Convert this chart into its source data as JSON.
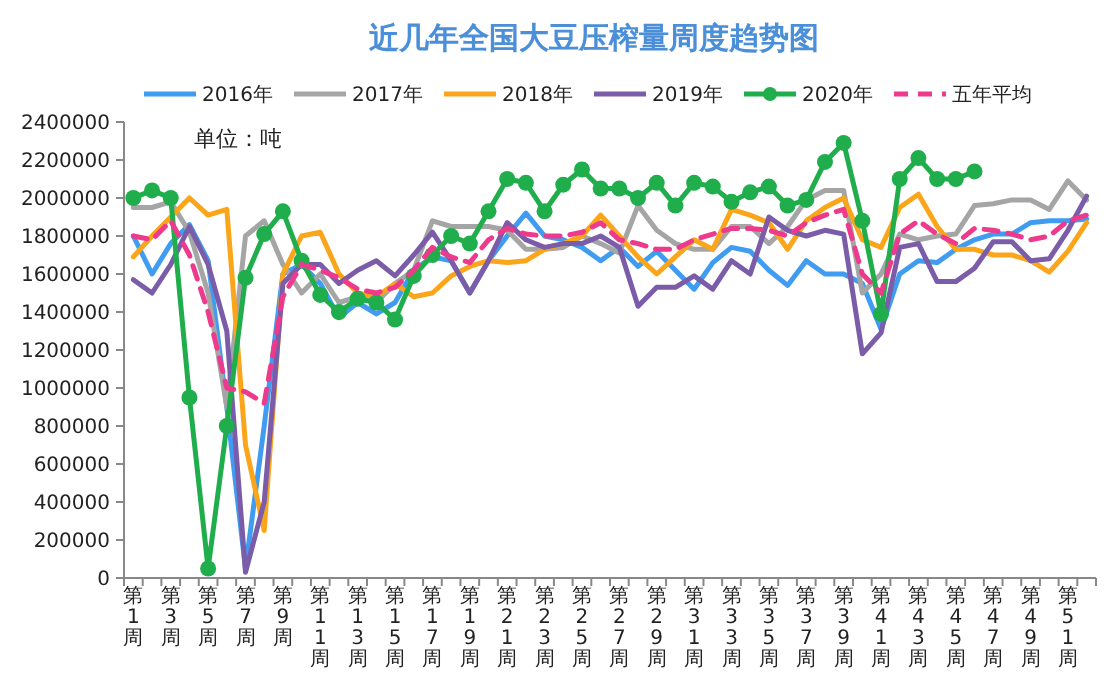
{
  "chart_data": {
    "type": "line",
    "title": "近几年全国大豆压榨量周度趋势图",
    "annotations": [
      "单位：吨"
    ],
    "categories": [
      "第1周",
      null,
      "第3周",
      null,
      "第5周",
      null,
      "第7周",
      null,
      "第9周",
      null,
      "第11周",
      null,
      "第13周",
      null,
      "第15周",
      null,
      "第17周",
      null,
      "第19周",
      null,
      "第21周",
      null,
      "第23周",
      null,
      "第25周",
      null,
      "第27周",
      null,
      "第29周",
      null,
      "第31周",
      null,
      "第33周",
      null,
      "第35周",
      null,
      "第37周",
      null,
      "第39周",
      null,
      "第41周",
      null,
      "第43周",
      null,
      "第45周",
      null,
      "第47周",
      null,
      "第49周",
      null,
      "第51周",
      null
    ],
    "ylim": [
      0,
      2400000
    ],
    "yticks": [
      0,
      200000,
      400000,
      600000,
      800000,
      1000000,
      1200000,
      1400000,
      1600000,
      1800000,
      2000000,
      2200000,
      2400000
    ],
    "grid": false,
    "legend": "top",
    "series": [
      {
        "name": "2016年",
        "color": "#3f9cf0",
        "marker": "none",
        "line_style": "solid",
        "values": [
          1800000,
          1600000,
          1760000,
          1860000,
          1670000,
          900000,
          50000,
          800000,
          1600000,
          1650000,
          1550000,
          1370000,
          1450000,
          1390000,
          1450000,
          1620000,
          1690000,
          1670000,
          1500000,
          1670000,
          1800000,
          1920000,
          1800000,
          1780000,
          1740000,
          1670000,
          1740000,
          1640000,
          1720000,
          1620000,
          1520000,
          1660000,
          1740000,
          1720000,
          1620000,
          1540000,
          1670000,
          1600000,
          1600000,
          1550000,
          1310000,
          1600000,
          1670000,
          1660000,
          1730000,
          1780000,
          1810000,
          1810000,
          1870000,
          1880000,
          1880000,
          1890000
        ]
      },
      {
        "name": "2017年",
        "color": "#a5a5a5",
        "marker": "none",
        "line_style": "solid",
        "values": [
          1950000,
          1950000,
          1980000,
          1820000,
          1500000,
          900000,
          1800000,
          1880000,
          1650000,
          1500000,
          1600000,
          1450000,
          1480000,
          1450000,
          1550000,
          1620000,
          1880000,
          1850000,
          1850000,
          1850000,
          1830000,
          1730000,
          1730000,
          1740000,
          1800000,
          1760000,
          1710000,
          1960000,
          1830000,
          1760000,
          1730000,
          1730000,
          1850000,
          1850000,
          1760000,
          1850000,
          1990000,
          2040000,
          2040000,
          1500000,
          1600000,
          1810000,
          1780000,
          1800000,
          1810000,
          1960000,
          1970000,
          1990000,
          1990000,
          1940000,
          2090000,
          1990000
        ]
      },
      {
        "name": "2018年",
        "color": "#fba51a",
        "marker": "none",
        "line_style": "solid",
        "values": [
          1690000,
          1800000,
          1900000,
          2000000,
          1910000,
          1940000,
          700000,
          250000,
          1600000,
          1800000,
          1820000,
          1600000,
          1500000,
          1480000,
          1550000,
          1480000,
          1500000,
          1590000,
          1640000,
          1670000,
          1660000,
          1670000,
          1730000,
          1760000,
          1800000,
          1910000,
          1800000,
          1690000,
          1600000,
          1690000,
          1780000,
          1730000,
          1940000,
          1910000,
          1870000,
          1730000,
          1880000,
          1950000,
          2000000,
          1780000,
          1740000,
          1950000,
          2020000,
          1850000,
          1730000,
          1730000,
          1700000,
          1700000,
          1670000,
          1610000,
          1720000,
          1870000
        ]
      },
      {
        "name": "2019年",
        "color": "#7b5ca8",
        "marker": "none",
        "line_style": "solid",
        "values": [
          1570000,
          1500000,
          1650000,
          1850000,
          1650000,
          1300000,
          30000,
          400000,
          1550000,
          1650000,
          1650000,
          1550000,
          1620000,
          1670000,
          1590000,
          1700000,
          1820000,
          1670000,
          1500000,
          1670000,
          1870000,
          1780000,
          1740000,
          1760000,
          1760000,
          1800000,
          1740000,
          1430000,
          1530000,
          1530000,
          1590000,
          1520000,
          1670000,
          1600000,
          1900000,
          1830000,
          1800000,
          1830000,
          1810000,
          1180000,
          1290000,
          1740000,
          1760000,
          1560000,
          1560000,
          1630000,
          1770000,
          1770000,
          1670000,
          1680000,
          1830000,
          2010000
        ]
      },
      {
        "name": "2020年",
        "color": "#1fae4b",
        "marker": "circle",
        "line_style": "solid",
        "values": [
          2000000,
          2040000,
          2000000,
          950000,
          50000,
          800000,
          1580000,
          1810000,
          1930000,
          1670000,
          1490000,
          1400000,
          1470000,
          1450000,
          1360000,
          1590000,
          1700000,
          1800000,
          1760000,
          1930000,
          2100000,
          2080000,
          1930000,
          2070000,
          2150000,
          2050000,
          2050000,
          2000000,
          2080000,
          1960000,
          2080000,
          2060000,
          1980000,
          2030000,
          2060000,
          1960000,
          1990000,
          2190000,
          2290000,
          1880000,
          1390000,
          2100000,
          2210000,
          2100000,
          2100000,
          2140000,
          null,
          null,
          null,
          null,
          null,
          null
        ]
      },
      {
        "name": "五年平均",
        "color": "#ee3a8c",
        "marker": "none",
        "line_style": "dashed",
        "values": [
          1800000,
          1780000,
          1880000,
          1700000,
          1400000,
          1000000,
          980000,
          920000,
          1480000,
          1650000,
          1620000,
          1580000,
          1520000,
          1500000,
          1530000,
          1620000,
          1740000,
          1690000,
          1660000,
          1780000,
          1840000,
          1810000,
          1800000,
          1800000,
          1820000,
          1870000,
          1780000,
          1760000,
          1730000,
          1730000,
          1780000,
          1810000,
          1840000,
          1840000,
          1830000,
          1800000,
          1870000,
          1910000,
          1940000,
          1600000,
          1500000,
          1810000,
          1880000,
          1810000,
          1760000,
          1840000,
          1830000,
          1810000,
          1780000,
          1800000,
          1880000,
          1910000
        ]
      }
    ]
  }
}
